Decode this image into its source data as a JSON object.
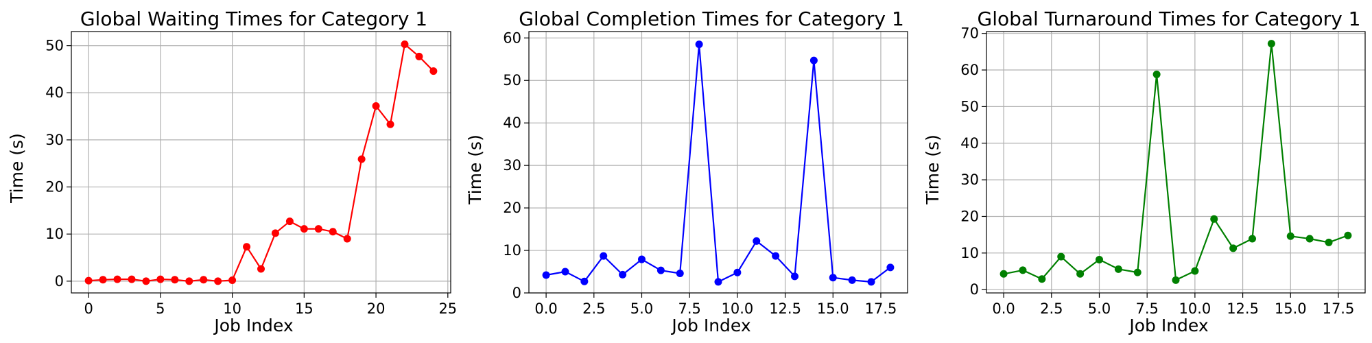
{
  "chart_data": [
    {
      "type": "line",
      "title": "Global Waiting Times for Category 1",
      "xlabel": "Job Index",
      "ylabel": "Time (s)",
      "xlim": [
        -1.2,
        25.2
      ],
      "ylim": [
        -2.5,
        53
      ],
      "xticks": [
        0,
        5,
        10,
        15,
        20,
        25
      ],
      "xtick_labels": [
        "0",
        "5",
        "10",
        "15",
        "20",
        "25"
      ],
      "yticks": [
        0,
        10,
        20,
        30,
        40,
        50
      ],
      "ytick_labels": [
        "0",
        "10",
        "20",
        "30",
        "40",
        "50"
      ],
      "grid": true,
      "color": "#ff0000",
      "x": [
        0,
        1,
        2,
        3,
        4,
        5,
        6,
        7,
        8,
        9,
        10,
        11,
        12,
        13,
        14,
        15,
        16,
        17,
        18,
        19,
        20,
        21,
        22,
        23,
        24
      ],
      "values": [
        0.1,
        0.3,
        0.4,
        0.4,
        0.0,
        0.4,
        0.3,
        0.0,
        0.3,
        0.0,
        0.2,
        7.3,
        2.6,
        10.2,
        12.7,
        11.1,
        11.1,
        10.5,
        9.0,
        25.9,
        37.2,
        33.3,
        50.3,
        47.7,
        44.6
      ]
    },
    {
      "type": "line",
      "title": "Global Completion Times for Category 1",
      "xlabel": "Job Index",
      "ylabel": "Time (s)",
      "xlim": [
        -0.9,
        18.9
      ],
      "ylim": [
        0,
        61.5
      ],
      "xticks": [
        0,
        2.5,
        5,
        7.5,
        10,
        12.5,
        15,
        17.5
      ],
      "xtick_labels": [
        "0.0",
        "2.5",
        "5.0",
        "7.5",
        "10.0",
        "12.5",
        "15.0",
        "17.5"
      ],
      "yticks": [
        0,
        10,
        20,
        30,
        40,
        50,
        60
      ],
      "ytick_labels": [
        "0",
        "10",
        "20",
        "30",
        "40",
        "50",
        "60"
      ],
      "grid": true,
      "color": "#0000ff",
      "x": [
        0,
        1,
        2,
        3,
        4,
        5,
        6,
        7,
        8,
        9,
        10,
        11,
        12,
        13,
        14,
        15,
        16,
        17,
        18
      ],
      "values": [
        4.2,
        5.0,
        2.7,
        8.7,
        4.3,
        7.9,
        5.3,
        4.6,
        58.5,
        2.6,
        4.8,
        12.2,
        8.7,
        3.9,
        54.7,
        3.6,
        3.0,
        2.6,
        6.0
      ]
    },
    {
      "type": "line",
      "title": "Global Turnaround Times for Category 1",
      "xlabel": "Job Index",
      "ylabel": "Time (s)",
      "xlim": [
        -0.9,
        18.9
      ],
      "ylim": [
        -0.9,
        70.5
      ],
      "xticks": [
        0,
        2.5,
        5,
        7.5,
        10,
        12.5,
        15,
        17.5
      ],
      "xtick_labels": [
        "0.0",
        "2.5",
        "5.0",
        "7.5",
        "10.0",
        "12.5",
        "15.0",
        "17.5"
      ],
      "yticks": [
        0,
        10,
        20,
        30,
        40,
        50,
        60,
        70
      ],
      "ytick_labels": [
        "0",
        "10",
        "20",
        "30",
        "40",
        "50",
        "60",
        "70"
      ],
      "grid": true,
      "color": "#008000",
      "x": [
        0,
        1,
        2,
        3,
        4,
        5,
        6,
        7,
        8,
        9,
        10,
        11,
        12,
        13,
        14,
        15,
        16,
        17,
        18
      ],
      "values": [
        4.3,
        5.3,
        2.9,
        9.0,
        4.3,
        8.2,
        5.6,
        4.7,
        58.8,
        2.6,
        5.1,
        19.3,
        11.3,
        13.9,
        67.2,
        14.6,
        13.9,
        12.9,
        14.8
      ]
    }
  ]
}
